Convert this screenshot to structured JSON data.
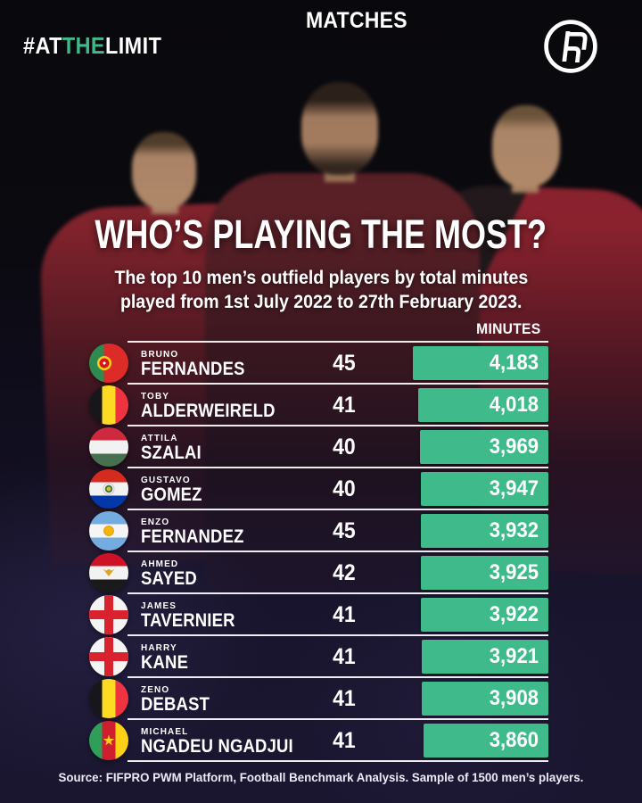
{
  "hashtag": {
    "prefix": "#AT",
    "highlight": "THE",
    "suffix": "LIMIT"
  },
  "logo": {
    "name": "FIFPRO monogram"
  },
  "header": {
    "title": "WHO’S PLAYING THE MOST?",
    "subtitle_line1": "The top 10 men’s outfield players by total minutes",
    "subtitle_line2": "played from 1st July 2022 to 27th February 2023."
  },
  "table": {
    "columns": {
      "matches": "MATCHES",
      "minutes": "MINUTES"
    },
    "max_minutes_value": 4183,
    "rows": [
      {
        "first_name": "BRUNO",
        "last_name": "FERNANDES",
        "flag": "portugal",
        "matches": 45,
        "minutes": "4,183",
        "minutes_value": 4183
      },
      {
        "first_name": "TOBY",
        "last_name": "ALDERWEIRELD",
        "flag": "belgium",
        "matches": 41,
        "minutes": "4,018",
        "minutes_value": 4018
      },
      {
        "first_name": "ATTILA",
        "last_name": "SZALAI",
        "flag": "hungary",
        "matches": 40,
        "minutes": "3,969",
        "minutes_value": 3969
      },
      {
        "first_name": "GUSTAVO",
        "last_name": "GOMEZ",
        "flag": "paraguay",
        "matches": 40,
        "minutes": "3,947",
        "minutes_value": 3947
      },
      {
        "first_name": "ENZO",
        "last_name": "FERNANDEZ",
        "flag": "argentina",
        "matches": 45,
        "minutes": "3,932",
        "minutes_value": 3932
      },
      {
        "first_name": "AHMED",
        "last_name": "SAYED",
        "flag": "egypt",
        "matches": 42,
        "minutes": "3,925",
        "minutes_value": 3925
      },
      {
        "first_name": "JAMES",
        "last_name": "TAVERNIER",
        "flag": "england",
        "matches": 41,
        "minutes": "3,922",
        "minutes_value": 3922
      },
      {
        "first_name": "HARRY",
        "last_name": "KANE",
        "flag": "england",
        "matches": 41,
        "minutes": "3,921",
        "minutes_value": 3921
      },
      {
        "first_name": "ZENO",
        "last_name": "DEBAST",
        "flag": "belgium",
        "matches": 41,
        "minutes": "3,908",
        "minutes_value": 3908
      },
      {
        "first_name": "MICHAEL",
        "last_name": "NGADEU NGADJUI",
        "flag": "cameroon",
        "matches": 41,
        "minutes": "3,860",
        "minutes_value": 3860
      }
    ]
  },
  "footer": {
    "source": "Source: FIFPRO PWM Platform, Football Benchmark Analysis. Sample of 1500 men’s players."
  },
  "colors": {
    "accent_green": "#3eba8b",
    "bar_green": "#3eba8b",
    "background_top": "#0a090d",
    "background_bottom": "#221e40",
    "divider_white": "#ffffff"
  },
  "chart_data": {
    "type": "bar",
    "orientation": "horizontal",
    "title": "WHO’S PLAYING THE MOST?",
    "subtitle": "The top 10 men’s outfield players by total minutes played from 1st July 2022 to 27th February 2023.",
    "categories": [
      "Bruno Fernandes",
      "Toby Alderweireld",
      "Attila Szalai",
      "Gustavo Gomez",
      "Enzo Fernandez",
      "Ahmed Sayed",
      "James Tavernier",
      "Harry Kane",
      "Zeno Debast",
      "Michael Ngadeu Ngadjui"
    ],
    "nationalities": [
      "Portugal",
      "Belgium",
      "Hungary",
      "Paraguay",
      "Argentina",
      "Egypt",
      "England",
      "England",
      "Belgium",
      "Cameroon"
    ],
    "series": [
      {
        "name": "Matches",
        "values": [
          45,
          41,
          40,
          40,
          45,
          42,
          41,
          41,
          41,
          41
        ]
      },
      {
        "name": "Minutes",
        "values": [
          4183,
          4018,
          3969,
          3947,
          3932,
          3925,
          3922,
          3921,
          3908,
          3860
        ]
      }
    ],
    "bar_color": "#3eba8b",
    "source": "Source: FIFPRO PWM Platform, Football Benchmark Analysis. Sample of 1500 men’s players."
  }
}
